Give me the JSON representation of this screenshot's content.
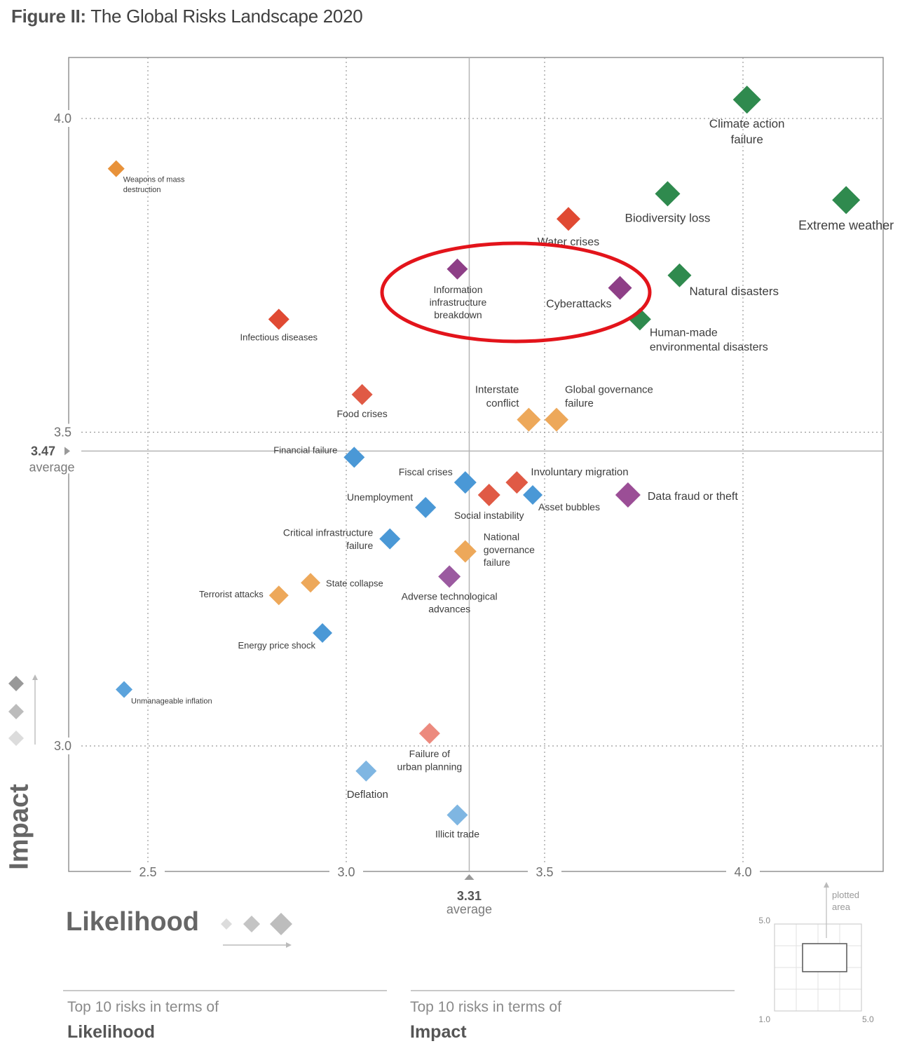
{
  "figure": {
    "prefix": "Figure II:",
    "title": "The Global Risks Landscape 2020"
  },
  "chart_data": {
    "type": "scatter",
    "xlabel": "Likelihood",
    "ylabel": "Impact",
    "xlim": [
      2.3,
      4.35
    ],
    "ylim": [
      2.8,
      4.1
    ],
    "x_ticks": [
      "2.5",
      "3.0",
      "3.5",
      "4.0"
    ],
    "y_ticks": [
      "3.0",
      "3.5",
      "4.0"
    ],
    "avg_x": {
      "value": "3.31",
      "label": "average"
    },
    "avg_y": {
      "value": "3.47",
      "label": "average"
    },
    "grid": true,
    "highlight": {
      "shape": "ellipse",
      "color": "#e3141b",
      "around": [
        "Information infrastructure breakdown",
        "Cyberattacks"
      ]
    },
    "points": [
      {
        "label": "Climate action failure",
        "x": 4.01,
        "y": 4.03,
        "color": "#2f8a4e",
        "size": 20
      },
      {
        "label": "Extreme weather",
        "x": 4.26,
        "y": 3.87,
        "color": "#2f8a4e",
        "size": 20
      },
      {
        "label": "Biodiversity loss",
        "x": 3.81,
        "y": 3.88,
        "color": "#2f8a4e",
        "size": 18
      },
      {
        "label": "Natural disasters",
        "x": 3.84,
        "y": 3.75,
        "color": "#2f8a4e",
        "size": 17
      },
      {
        "label": "Human-made environmental disasters",
        "x": 3.74,
        "y": 3.68,
        "color": "#2f8a4e",
        "size": 16
      },
      {
        "label": "Water crises",
        "x": 3.56,
        "y": 3.84,
        "color": "#e04a33",
        "size": 17
      },
      {
        "label": "Cyberattacks",
        "x": 3.69,
        "y": 3.73,
        "color": "#8e3f87",
        "size": 17
      },
      {
        "label": "Information infrastructure breakdown",
        "x": 3.28,
        "y": 3.76,
        "color": "#8e3f87",
        "size": 15
      },
      {
        "label": "Infectious diseases",
        "x": 2.83,
        "y": 3.68,
        "color": "#e04a33",
        "size": 15
      },
      {
        "label": "Weapons of mass destruction",
        "x": 2.42,
        "y": 3.92,
        "color": "#e8923a",
        "size": 12
      },
      {
        "label": "Food crises",
        "x": 3.04,
        "y": 3.56,
        "color": "#e05a45",
        "size": 15
      },
      {
        "label": "Interstate conflict",
        "x": 3.46,
        "y": 3.52,
        "color": "#eda85a",
        "size": 17
      },
      {
        "label": "Global governance failure",
        "x": 3.53,
        "y": 3.52,
        "color": "#eda85a",
        "size": 17
      },
      {
        "label": "Financial failure",
        "x": 3.02,
        "y": 3.46,
        "color": "#4a98d6",
        "size": 15
      },
      {
        "label": "Fiscal crises",
        "x": 3.3,
        "y": 3.42,
        "color": "#4a98d6",
        "size": 16
      },
      {
        "label": "Involuntary migration",
        "x": 3.43,
        "y": 3.42,
        "color": "#e05a45",
        "size": 16
      },
      {
        "label": "Asset bubbles",
        "x": 3.47,
        "y": 3.4,
        "color": "#4a98d6",
        "size": 14
      },
      {
        "label": "Social instability",
        "x": 3.36,
        "y": 3.4,
        "color": "#e05a45",
        "size": 16
      },
      {
        "label": "Data fraud or theft",
        "x": 3.71,
        "y": 3.4,
        "color": "#9b4e96",
        "size": 18
      },
      {
        "label": "Unemployment",
        "x": 3.2,
        "y": 3.38,
        "color": "#4a98d6",
        "size": 15
      },
      {
        "label": "Critical infrastructure failure",
        "x": 3.11,
        "y": 3.33,
        "color": "#4a98d6",
        "size": 15
      },
      {
        "label": "National governance failure",
        "x": 3.3,
        "y": 3.31,
        "color": "#eda85a",
        "size": 16
      },
      {
        "label": "Adverse technological advances",
        "x": 3.26,
        "y": 3.27,
        "color": "#9b5aa0",
        "size": 16
      },
      {
        "label": "State collapse",
        "x": 2.91,
        "y": 3.26,
        "color": "#eda85a",
        "size": 14
      },
      {
        "label": "Terrorist attacks",
        "x": 2.83,
        "y": 3.24,
        "color": "#eda85a",
        "size": 14
      },
      {
        "label": "Energy price shock",
        "x": 2.94,
        "y": 3.18,
        "color": "#4a98d6",
        "size": 14
      },
      {
        "label": "Unmanageable inflation",
        "x": 2.44,
        "y": 3.09,
        "color": "#5ba3dc",
        "size": 12
      },
      {
        "label": "Failure of urban planning",
        "x": 3.21,
        "y": 3.02,
        "color": "#ec8a7e",
        "size": 15
      },
      {
        "label": "Deflation",
        "x": 3.05,
        "y": 2.96,
        "color": "#7fb6e2",
        "size": 15
      },
      {
        "label": "Illicit trade",
        "x": 3.28,
        "y": 2.89,
        "color": "#7fb6e2",
        "size": 15
      }
    ],
    "annotations": {
      "plotted_area": "plotted area",
      "inset_ymax": "5.0",
      "inset_xmin": "1.0",
      "inset_xmax": "5.0"
    }
  },
  "labels": [
    {
      "point": 0,
      "lines": [
        "Climate action",
        "failure"
      ],
      "size": 17
    },
    {
      "point": 1,
      "lines": [
        "Extreme weather"
      ],
      "size": 18
    },
    {
      "point": 2,
      "lines": [
        "Biodiversity loss"
      ],
      "size": 17
    },
    {
      "point": 3,
      "lines": [
        "Natural disasters"
      ],
      "size": 17
    },
    {
      "point": 4,
      "lines": [
        "Human-made",
        "environmental disasters"
      ],
      "size": 16
    },
    {
      "point": 5,
      "lines": [
        "Water crises"
      ],
      "size": 16
    },
    {
      "point": 6,
      "lines": [
        "Cyberattacks"
      ],
      "size": 16
    },
    {
      "point": 7,
      "lines": [
        "Information",
        "infrastructure",
        "breakdown"
      ],
      "size": 14
    },
    {
      "point": 8,
      "lines": [
        "Infectious diseases"
      ],
      "size": 13
    },
    {
      "point": 9,
      "lines": [
        "Weapons of mass",
        "destruction"
      ],
      "size": 11
    },
    {
      "point": 10,
      "lines": [
        "Food crises"
      ],
      "size": 14
    },
    {
      "point": 11,
      "lines": [
        "Interstate",
        "conflict"
      ],
      "size": 15
    },
    {
      "point": 12,
      "lines": [
        "Global governance",
        "failure"
      ],
      "size": 15
    },
    {
      "point": 13,
      "lines": [
        "Financial failure"
      ],
      "size": 13
    },
    {
      "point": 14,
      "lines": [
        "Fiscal crises"
      ],
      "size": 14
    },
    {
      "point": 15,
      "lines": [
        "Involuntary migration"
      ],
      "size": 15
    },
    {
      "point": 16,
      "lines": [
        "Asset bubbles"
      ],
      "size": 14
    },
    {
      "point": 17,
      "lines": [
        "Social instability"
      ],
      "size": 14
    },
    {
      "point": 18,
      "lines": [
        "Data fraud or theft"
      ],
      "size": 16
    },
    {
      "point": 19,
      "lines": [
        "Unemployment"
      ],
      "size": 14
    },
    {
      "point": 20,
      "lines": [
        "Critical infrastructure",
        "failure"
      ],
      "size": 14
    },
    {
      "point": 21,
      "lines": [
        "National",
        "governance",
        "failure"
      ],
      "size": 14
    },
    {
      "point": 22,
      "lines": [
        "Adverse technological",
        "advances"
      ],
      "size": 14
    },
    {
      "point": 23,
      "lines": [
        "State collapse"
      ],
      "size": 13
    },
    {
      "point": 24,
      "lines": [
        "Terrorist attacks"
      ],
      "size": 13
    },
    {
      "point": 25,
      "lines": [
        "Energy price shock"
      ],
      "size": 13
    },
    {
      "point": 26,
      "lines": [
        "Unmanageable inflation"
      ],
      "size": 11
    },
    {
      "point": 27,
      "lines": [
        "Failure of",
        "urban planning"
      ],
      "size": 14
    },
    {
      "point": 28,
      "lines": [
        "Deflation"
      ],
      "size": 15
    },
    {
      "point": 29,
      "lines": [
        "Illicit trade"
      ],
      "size": 14
    }
  ],
  "footer": {
    "left_head": "Top 10 risks in terms of",
    "left_bold": "Likelihood",
    "right_head": "Top 10 risks in terms of",
    "right_bold": "Impact"
  }
}
